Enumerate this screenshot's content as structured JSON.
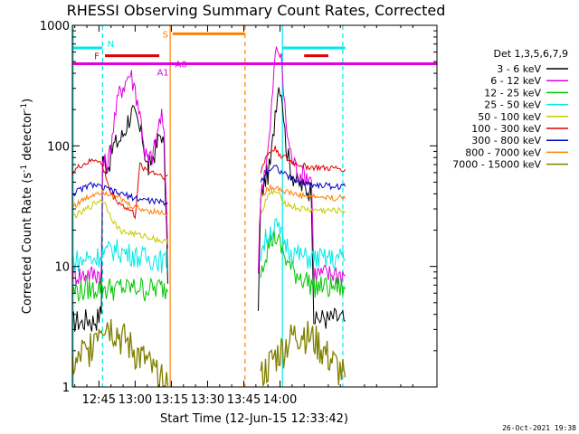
{
  "chart_data": {
    "type": "line",
    "title": "RHESSI Observing Summary Count Rates, Corrected",
    "xlabel": "Start Time (12-Jun-15 12:33:42)",
    "ylabel": "Corrected Count Rate (s",
    "ylabel_sup1": "-1",
    "ylabel_mid": " detector",
    "ylabel_sup2": "-1",
    "ylabel_end": ")",
    "yscale": "log",
    "ylim": [
      1,
      1000
    ],
    "xlim_min": [
      754,
      905
    ],
    "x_ticks": [
      {
        "v": 765,
        "label": "12:45"
      },
      {
        "v": 780,
        "label": "13:00"
      },
      {
        "v": 795,
        "label": "13:15"
      },
      {
        "v": 810,
        "label": "13:30"
      },
      {
        "v": 825,
        "label": "13:45"
      },
      {
        "v": 840,
        "label": "14:00"
      }
    ],
    "y_ticks": [
      {
        "v": 1,
        "label": "1"
      },
      {
        "v": 10,
        "label": "10"
      },
      {
        "v": 100,
        "label": "100"
      },
      {
        "v": 1000,
        "label": "1000"
      }
    ],
    "legend_title": "Det 1,3,5,6,7,9",
    "legend_position": "right",
    "series": [
      {
        "name": "3 - 6 keV",
        "color": "#000000",
        "x": [
          754,
          756,
          758,
          760,
          762,
          764,
          766,
          766.5,
          767,
          769,
          771,
          773,
          774,
          775,
          776,
          777,
          778,
          779,
          780,
          781,
          782,
          783,
          784,
          785,
          785.5,
          786,
          787,
          788,
          789,
          790,
          791,
          792,
          794,
          806,
          830,
          831,
          832,
          833,
          834,
          835,
          836,
          837,
          838,
          839,
          840,
          841,
          842,
          843,
          844,
          845,
          846,
          847,
          848,
          850,
          852,
          853,
          854,
          855,
          856,
          857,
          858,
          860,
          862,
          866,
          867
        ],
        "y": [
          3.5,
          3.6,
          3.4,
          3.8,
          3.5,
          3.7,
          4.2,
          80,
          75,
          70,
          100,
          110,
          115,
          125,
          140,
          165,
          180,
          190,
          170,
          155,
          130,
          120,
          90,
          70,
          65,
          70,
          80,
          90,
          100,
          120,
          130,
          90,
          4,
          null,
          null,
          4,
          35,
          45,
          55,
          60,
          70,
          110,
          200,
          300,
          330,
          250,
          130,
          90,
          70,
          60,
          55,
          50,
          48,
          45,
          44,
          43,
          4,
          3.5,
          3.8,
          3.6,
          3.9,
          3.6,
          3.8,
          3.7,
          3.5
        ]
      },
      {
        "name": "6 - 12 keV",
        "color": "#e000e0",
        "x": [
          754,
          756,
          758,
          760,
          762,
          764,
          766,
          766.5,
          767,
          769,
          771,
          773,
          774,
          775,
          776,
          777,
          778,
          779,
          780,
          781,
          782,
          783,
          784,
          785,
          785.5,
          786,
          787,
          788,
          789,
          790,
          791,
          792,
          794,
          806,
          830,
          831,
          832,
          833,
          834,
          835,
          836,
          837,
          838,
          839,
          840,
          841,
          842,
          843,
          844,
          845,
          846,
          847,
          848,
          850,
          852,
          853,
          854,
          855,
          856,
          857,
          858,
          860,
          862,
          866,
          867
        ],
        "y": [
          8.5,
          8.8,
          8.4,
          9,
          8.6,
          8.9,
          9,
          75,
          70,
          75,
          150,
          250,
          300,
          320,
          340,
          380,
          400,
          350,
          300,
          240,
          180,
          140,
          90,
          80,
          70,
          78,
          85,
          95,
          120,
          160,
          180,
          110,
          9,
          null,
          null,
          9,
          40,
          55,
          70,
          90,
          140,
          300,
          550,
          650,
          600,
          400,
          200,
          130,
          95,
          80,
          70,
          65,
          60,
          58,
          56,
          55,
          9,
          8.6,
          9,
          8.5,
          8.8,
          8.6,
          9,
          8.7,
          8.5
        ]
      },
      {
        "name": "12 - 25 keV",
        "color": "#00c800",
        "x": [
          754,
          756,
          758,
          760,
          762,
          764,
          766,
          768,
          770,
          772,
          774,
          776,
          778,
          780,
          782,
          784,
          786,
          788,
          790,
          792,
          794,
          806,
          830,
          832,
          834,
          836,
          838,
          840,
          842,
          844,
          846,
          848,
          850,
          852,
          854,
          856,
          858,
          860,
          862,
          866,
          867
        ],
        "y": [
          6,
          6.5,
          6.2,
          6.8,
          6.4,
          6.7,
          7,
          6.5,
          6.8,
          6.4,
          6.9,
          6.5,
          6.8,
          6.6,
          6.9,
          6.4,
          6.7,
          6.5,
          6.8,
          6.6,
          6.4,
          null,
          null,
          10,
          13,
          16,
          18,
          15,
          12,
          10,
          9,
          8.5,
          8,
          7.5,
          7,
          6.8,
          7,
          6.6,
          6.9,
          6.7,
          6.5
        ]
      },
      {
        "name": "25 - 50 keV",
        "color": "#00e8e8",
        "x": [
          754,
          756,
          758,
          760,
          762,
          764,
          766,
          768,
          770,
          772,
          774,
          776,
          778,
          780,
          782,
          784,
          786,
          788,
          790,
          792,
          794,
          806,
          830,
          832,
          834,
          836,
          838,
          840,
          842,
          844,
          846,
          848,
          850,
          852,
          854,
          856,
          858,
          860,
          862,
          866,
          867
        ],
        "y": [
          11,
          11.5,
          11,
          12,
          11.5,
          12,
          13,
          13,
          14,
          14,
          13.5,
          13,
          13,
          12.5,
          12,
          12,
          11.5,
          12,
          11.5,
          11,
          11,
          null,
          null,
          13,
          17,
          20,
          22,
          19,
          16,
          14,
          13,
          12.5,
          12,
          12,
          11.5,
          12,
          11.5,
          12,
          11.5,
          12,
          11.5
        ]
      },
      {
        "name": "50 - 100 keV",
        "color": "#c8c800",
        "x": [
          754,
          756,
          758,
          760,
          762,
          764,
          766,
          768,
          770,
          772,
          774,
          776,
          778,
          780,
          782,
          784,
          786,
          788,
          790,
          792,
          794,
          806,
          830,
          832,
          834,
          836,
          838,
          840,
          842,
          844,
          846,
          848,
          850,
          852,
          854,
          856,
          858,
          860,
          862,
          866,
          867
        ],
        "y": [
          26,
          27,
          28,
          30,
          32,
          34,
          36,
          32,
          26,
          22,
          20,
          19,
          19,
          18.5,
          18,
          18,
          17.5,
          17,
          16.5,
          16,
          16,
          null,
          null,
          27,
          35,
          40,
          42,
          38,
          34,
          32,
          31,
          30,
          30,
          29.5,
          29,
          29.5,
          29,
          29,
          29,
          29,
          28.5
        ]
      },
      {
        "name": "100 - 300 keV",
        "color": "#e00000",
        "x": [
          754,
          756,
          758,
          760,
          762,
          764,
          766,
          768,
          770,
          772,
          774,
          776,
          778,
          779,
          780,
          782,
          784,
          786,
          788,
          790,
          792,
          794,
          806,
          830,
          832,
          834,
          836,
          838,
          840,
          842,
          844,
          846,
          848,
          850,
          852,
          854,
          856,
          858,
          860,
          862,
          866,
          867
        ],
        "y": [
          60,
          65,
          70,
          72,
          75,
          78,
          70,
          55,
          40,
          36,
          33,
          31,
          29,
          28,
          26,
          70,
          65,
          62,
          60,
          58,
          56,
          55,
          null,
          null,
          60,
          80,
          90,
          95,
          85,
          80,
          75,
          72,
          70,
          68,
          67,
          66,
          66,
          65,
          65,
          65,
          65,
          64
        ]
      },
      {
        "name": "300 - 800 keV",
        "color": "#0000c8",
        "x": [
          754,
          756,
          758,
          760,
          762,
          764,
          766,
          768,
          770,
          772,
          774,
          776,
          778,
          780,
          782,
          784,
          786,
          788,
          790,
          792,
          794,
          806,
          830,
          832,
          834,
          836,
          838,
          840,
          842,
          844,
          846,
          848,
          850,
          852,
          854,
          856,
          858,
          860,
          862,
          866,
          867
        ],
        "y": [
          40,
          42,
          44,
          46,
          48,
          47,
          45,
          44,
          43,
          41,
          40,
          39,
          38,
          37,
          36,
          36,
          35,
          35,
          34,
          34,
          33,
          null,
          null,
          50,
          60,
          65,
          68,
          62,
          58,
          55,
          52,
          50,
          49,
          48,
          48,
          47,
          47,
          47,
          46,
          46,
          46
        ]
      },
      {
        "name": "800 - 7000 keV",
        "color": "#ff8000",
        "x": [
          754,
          756,
          758,
          760,
          762,
          764,
          766,
          768,
          770,
          772,
          774,
          776,
          778,
          780,
          782,
          784,
          786,
          788,
          790,
          792,
          794,
          806,
          830,
          832,
          834,
          836,
          838,
          840,
          842,
          844,
          846,
          848,
          850,
          852,
          854,
          856,
          858,
          860,
          862,
          866,
          867
        ],
        "y": [
          32,
          33,
          35,
          37,
          39,
          41,
          42,
          41,
          40,
          38,
          36,
          34,
          32,
          31,
          30,
          29.5,
          29,
          28.5,
          28,
          28,
          27.5,
          null,
          null,
          36,
          42,
          45,
          46,
          44,
          42,
          41,
          40,
          39,
          38.5,
          38,
          38,
          37.5,
          37.5,
          37,
          37,
          37,
          36.5
        ]
      },
      {
        "name": "7000 - 15000 keV",
        "color": "#808000",
        "x": [
          754,
          756,
          758,
          760,
          762,
          764,
          766,
          768,
          770,
          772,
          774,
          776,
          778,
          780,
          782,
          784,
          786,
          788,
          790,
          792,
          794,
          806,
          830,
          832,
          834,
          836,
          838,
          840,
          842,
          844,
          846,
          848,
          850,
          852,
          854,
          856,
          858,
          860,
          862,
          866,
          867
        ],
        "y": [
          1.6,
          1.5,
          2,
          1.8,
          2.5,
          3,
          3.5,
          3.5,
          3.2,
          3,
          2.6,
          2.5,
          2.2,
          2,
          1.8,
          1.7,
          1.5,
          1.3,
          1.2,
          1.1,
          1.1,
          null,
          null,
          1.2,
          1.4,
          1.6,
          1.8,
          2,
          2.2,
          2.5,
          2.7,
          2.8,
          2.9,
          2.6,
          2.5,
          2.3,
          2,
          1.8,
          1.6,
          1.3,
          1.2
        ]
      }
    ],
    "annotations": {
      "N": {
        "label": "N",
        "color": "#00e8e8",
        "segments": [
          [
            754,
            766.5
          ],
          [
            841,
            867
          ]
        ],
        "level": 650
      },
      "F": {
        "label": "F",
        "color": "#e00000",
        "segments": [
          [
            767.5,
            790
          ],
          [
            850,
            860
          ]
        ],
        "level": 560
      },
      "S": {
        "label": "S",
        "color": "#ff8000",
        "segments": [
          [
            795.5,
            825.5
          ]
        ],
        "level": 850
      },
      "A": {
        "color": "#e000e0",
        "segments": [
          [
            754,
            905
          ]
        ],
        "level": 480
      },
      "A1": {
        "label": "A1",
        "color": "#e000e0"
      },
      "A0": {
        "label": "A0",
        "color": "#e000e0"
      }
    },
    "vlines": [
      {
        "x": 766.5,
        "color": "#00e8e8",
        "style": "dashed"
      },
      {
        "x": 794.5,
        "color": "#ff8000",
        "style": "solid"
      },
      {
        "x": 825.5,
        "color": "#ff8000",
        "style": "dashed"
      },
      {
        "x": 841,
        "color": "#00e8e8",
        "style": "solid"
      },
      {
        "x": 866,
        "color": "#00e8e8",
        "style": "dashed"
      },
      {
        "x": 754.3,
        "color": "#00e8e8",
        "style": "solid"
      }
    ],
    "timestamp": "26-Oct-2021 19:38"
  }
}
